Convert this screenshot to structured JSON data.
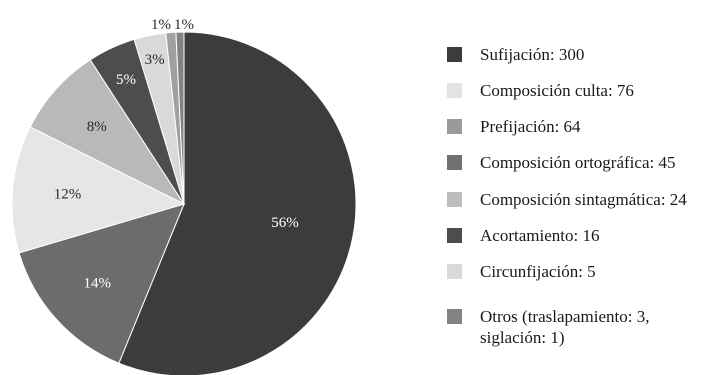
{
  "chart_data": {
    "type": "pie",
    "title": "",
    "slices": [
      {
        "label": "Sufijación: 300",
        "value": 300,
        "pct_label": "56%",
        "color": "#3c3c3c"
      },
      {
        "label": "Composición culta: 76",
        "value": 76,
        "pct_label": "14%",
        "color": "#6c6c6c"
      },
      {
        "label": "Prefijación: 64",
        "value": 64,
        "pct_label": "12%",
        "color": "#e6e6e6"
      },
      {
        "label": "Composición ortográfica: 45",
        "value": 45,
        "pct_label": "8%",
        "color": "#b9b9b9"
      },
      {
        "label": "Composición sintagmática: 24",
        "value": 24,
        "pct_label": "5%",
        "color": "#4d4d4d"
      },
      {
        "label": "Acortamiento: 16",
        "value": 16,
        "pct_label": "3%",
        "color": "#d9d9d9"
      },
      {
        "label": "Circunfijación: 5",
        "value": 5,
        "pct_label": "1%",
        "color": "#a0a0a0"
      },
      {
        "label": "Otros (traslapamiento: 3,\nsiglación: 1)",
        "value": 4,
        "pct_label": "1%",
        "color": "#838383"
      }
    ],
    "legend": {
      "position": "right",
      "items": [
        {
          "label": "Sufijación: 300",
          "color": "#3c3c3c"
        },
        {
          "label": "Composición culta: 76",
          "color": "#e3e3e3"
        },
        {
          "label": "Prefijación: 64",
          "color": "#9a9a9a"
        },
        {
          "label": "Composición ortográfica: 45",
          "color": "#707070"
        },
        {
          "label": "Composición sintagmática: 24",
          "color": "#bdbdbd"
        },
        {
          "label": "Acortamiento: 16",
          "color": "#4d4d4d"
        },
        {
          "label": "Circunfijación: 5",
          "color": "#d9d9d9"
        },
        {
          "label": "Otros (traslapamiento: 3,\nsiglación: 1)",
          "color": "#838383"
        }
      ]
    }
  }
}
